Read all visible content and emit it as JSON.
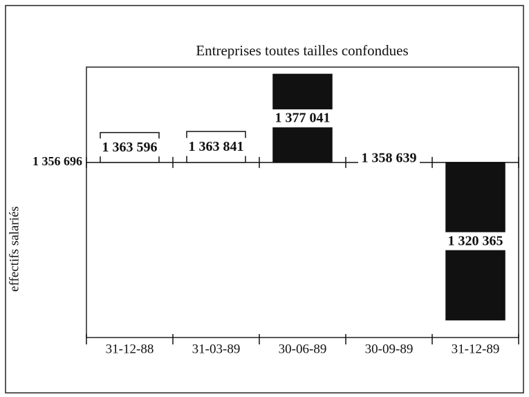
{
  "chart_data": {
    "type": "bar",
    "title": "Entreprises toutes tailles confondues",
    "y_label": "effectifs salariés",
    "categories": [
      "31-12-88",
      "31-03-89",
      "30-06-89",
      "30-09-89",
      "31-12-89"
    ],
    "values": [
      1363596,
      1363841,
      1377041,
      1358639,
      1320365
    ],
    "value_labels": [
      "1 363 596",
      "1 363 841",
      "1 377 041",
      "1 358 639",
      "1 320 365"
    ],
    "colors": [
      "#ffffff",
      "#ffffff",
      "#111111",
      "#ffffff",
      "#111111"
    ],
    "ylim": [
      1316300,
      1378700
    ],
    "yticks": [
      {
        "value": 1356696,
        "label": "1 356 696"
      }
    ]
  }
}
